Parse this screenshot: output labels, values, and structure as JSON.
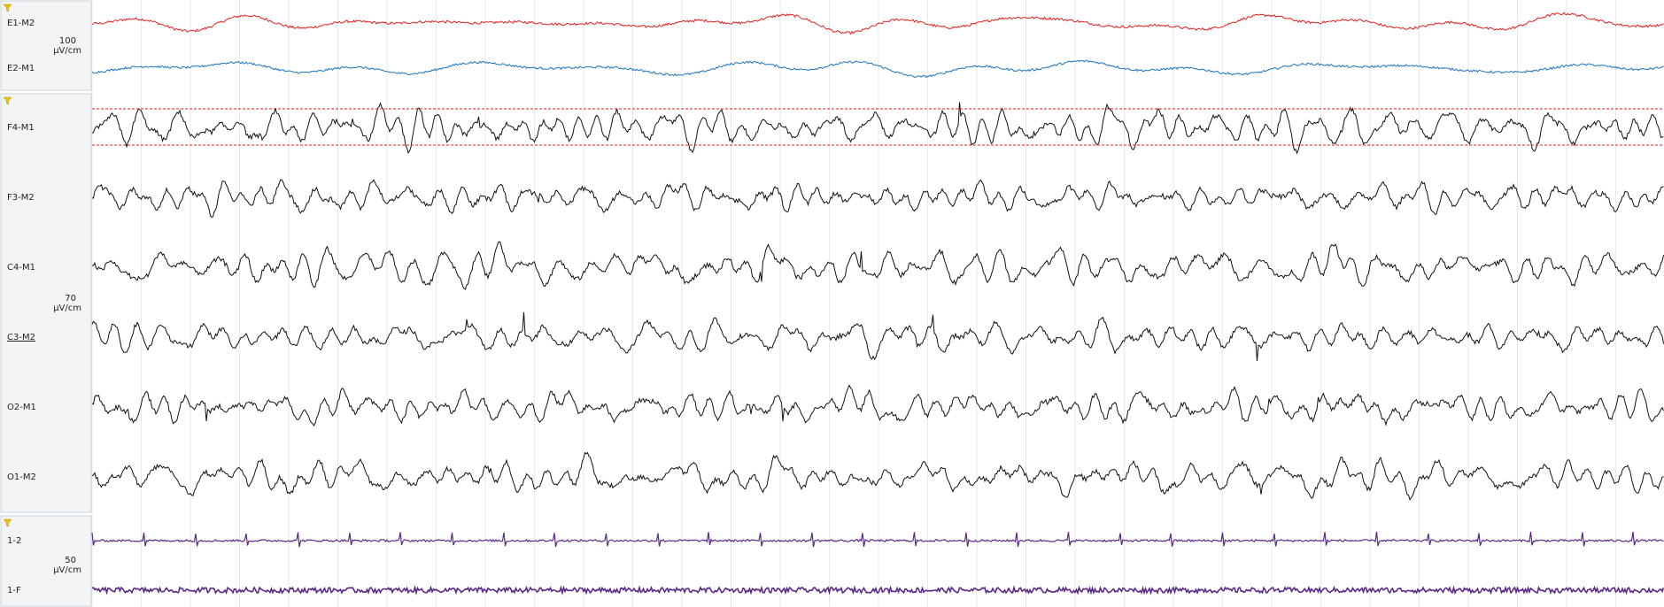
{
  "groups": [
    {
      "scale": "100",
      "unit": "µV/cm",
      "channels": [
        "E1-M2",
        "E2-M1"
      ]
    },
    {
      "scale": "70",
      "unit": "µV/cm",
      "channels": [
        "F4-M1",
        "F3-M2",
        "C4-M1",
        "C3-M2",
        "O2-M1",
        "O1-M2"
      ]
    },
    {
      "scale": "50",
      "unit": "µV/cm",
      "channels": [
        "1-2",
        "1-F"
      ]
    }
  ]
}
